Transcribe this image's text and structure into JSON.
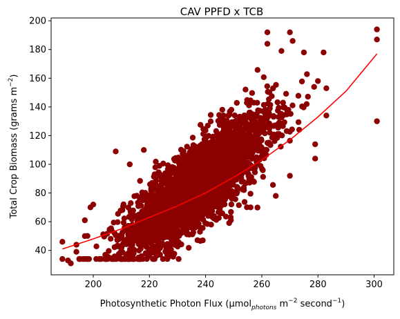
{
  "chart_data": {
    "type": "scatter",
    "title": "CAV PPFD x TCB",
    "xlabel": {
      "prefix": "Photosynthetic Photon Flux (μmol",
      "sub": "photons",
      "mid1": " m",
      "sup1": "−2",
      "mid2": " second",
      "sup2": "−1",
      "suffix": ")"
    },
    "ylabel": {
      "prefix": "Total Crop Biomass (grams m",
      "sup": "−2",
      "suffix": ")"
    },
    "xlim": [
      185,
      307
    ],
    "ylim": [
      23,
      202
    ],
    "xticks": [
      200,
      220,
      240,
      260,
      280,
      300
    ],
    "yticks": [
      40,
      60,
      80,
      100,
      120,
      140,
      160,
      180,
      200
    ],
    "marker_color": "#8b0000",
    "fit_color": "#ff0000",
    "grid": false,
    "cloud": {
      "description": "dense point cloud, approx. 10000 points",
      "x_range": [
        188,
        301
      ],
      "y_range": [
        31,
        195
      ]
    },
    "outliers": [
      {
        "x": 189,
        "y": 46
      },
      {
        "x": 189,
        "y": 34
      },
      {
        "x": 191,
        "y": 33
      },
      {
        "x": 192,
        "y": 31
      },
      {
        "x": 301,
        "y": 194
      },
      {
        "x": 301,
        "y": 187
      },
      {
        "x": 301,
        "y": 130
      },
      {
        "x": 262,
        "y": 192
      },
      {
        "x": 262,
        "y": 184
      },
      {
        "x": 270,
        "y": 192
      },
      {
        "x": 271,
        "y": 186
      },
      {
        "x": 267,
        "y": 179
      },
      {
        "x": 275,
        "y": 178
      },
      {
        "x": 280,
        "y": 158
      },
      {
        "x": 283,
        "y": 153
      },
      {
        "x": 283,
        "y": 134
      },
      {
        "x": 279,
        "y": 114
      },
      {
        "x": 279,
        "y": 104
      },
      {
        "x": 270,
        "y": 92
      },
      {
        "x": 265,
        "y": 78
      },
      {
        "x": 256,
        "y": 70
      },
      {
        "x": 249,
        "y": 61
      },
      {
        "x": 238,
        "y": 56
      },
      {
        "x": 239,
        "y": 47
      },
      {
        "x": 208,
        "y": 109
      },
      {
        "x": 218,
        "y": 110
      },
      {
        "x": 213,
        "y": 100
      },
      {
        "x": 200,
        "y": 72
      },
      {
        "x": 199,
        "y": 70
      },
      {
        "x": 197,
        "y": 61
      },
      {
        "x": 197,
        "y": 50
      },
      {
        "x": 194,
        "y": 44
      },
      {
        "x": 194,
        "y": 39
      },
      {
        "x": 214,
        "y": 36
      }
    ],
    "fit_line": {
      "x": [
        189,
        200,
        210,
        220,
        230,
        240,
        250,
        260,
        270,
        280,
        290,
        301
      ],
      "y": [
        41,
        48,
        55,
        63,
        71,
        80,
        91,
        103,
        117,
        133,
        151,
        177
      ]
    }
  }
}
